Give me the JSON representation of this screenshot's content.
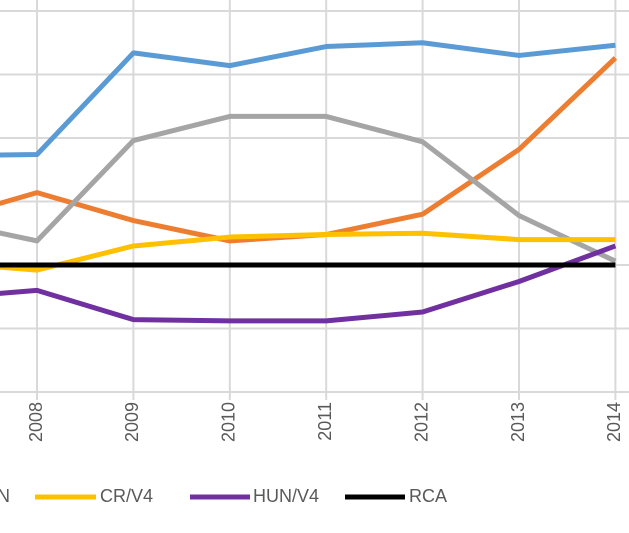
{
  "chart_data": {
    "type": "line",
    "categories": [
      null,
      "2008",
      "2009",
      "2010",
      "2011",
      "2012",
      "2013",
      "2014"
    ],
    "series": [
      {
        "name": null,
        "color": "#5b9bd5",
        "values": [
          1.86,
          1.87,
          2.67,
          2.57,
          2.72,
          2.75,
          2.65,
          2.73
        ]
      },
      {
        "name": null,
        "color": "#ed7d31",
        "values": [
          1.35,
          1.57,
          1.35,
          1.19,
          1.24,
          1.4,
          1.91,
          2.63
        ]
      },
      {
        "name": "N",
        "color": "#a5a5a5",
        "values": [
          1.35,
          1.19,
          1.98,
          2.17,
          2.17,
          1.97,
          1.39,
          1.03
        ]
      },
      {
        "name": "CR/V4",
        "color": "#ffc000",
        "values": [
          1.02,
          0.96,
          1.15,
          1.22,
          1.24,
          1.25,
          1.2,
          1.2
        ]
      },
      {
        "name": "HUN/V4",
        "color": "#7030a0",
        "values": [
          0.74,
          0.8,
          0.57,
          0.56,
          0.56,
          0.63,
          0.87,
          1.15
        ]
      },
      {
        "name": "RCA",
        "color": "#000000",
        "values": [
          1,
          1,
          1,
          1,
          1,
          1,
          1,
          1
        ]
      }
    ],
    "ylim": [
      0,
      3
    ],
    "yticks": [
      0,
      0.5,
      1,
      1.5,
      2,
      2.5,
      3
    ],
    "grid": true,
    "legend": "bottom"
  }
}
